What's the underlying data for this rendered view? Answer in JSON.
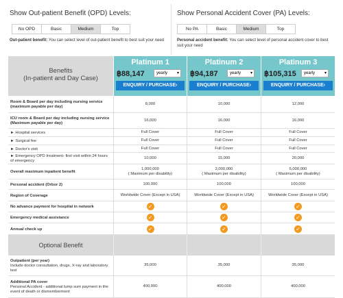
{
  "opd": {
    "title": "Show Out-patient Benefit (OPD) Levels:",
    "buttons": [
      "No OPD",
      "Basic",
      "Medium",
      "Top"
    ],
    "note_label": "Out-patient benefit:",
    "note_text": "You can select level of out-patient benefit to best suit your need"
  },
  "pa": {
    "title": "Show Personal Accident Cover (PA) Levels:",
    "buttons": [
      "No PA",
      "Basic",
      "Medium",
      "Top"
    ],
    "note_label": "Personal accident benefit:",
    "note_text": "You can select level of personal accident cover to best suit your need"
  },
  "table": {
    "header": {
      "line1": "Benefits",
      "line2": "(In-patient and Day Case)"
    },
    "plans": [
      {
        "name": "Platinum 1",
        "price": "฿88,147",
        "period": "yearly",
        "button": "ENQUIRY / PURCHASE›"
      },
      {
        "name": "Platinum 2",
        "price": "฿94,187",
        "period": "yearly",
        "button": "ENQUIRY / PURCHASE›"
      },
      {
        "name": "Platinum 3",
        "price": "฿105,315",
        "period": "yearly",
        "button": "ENQUIRY / PURCHASE›"
      }
    ],
    "rows": [
      {
        "label": "Room & Board per day including nursing service (maximum payable per day)",
        "cells": [
          "8,000",
          "10,000",
          "12,000"
        ]
      },
      {
        "label": "ICU room & Board per day including nursing service (Maximum payable per day)",
        "cells": [
          "16,000",
          "16,000",
          "16,000"
        ]
      },
      {
        "label": "► Hospital services",
        "cells": [
          "Full Cover",
          "Full Cover",
          "Full Cover"
        ]
      },
      {
        "label": "► Surgical fee",
        "cells": [
          "Full Cover",
          "Full Cover",
          "Full Cover"
        ]
      },
      {
        "label": "► Doctor's visit",
        "cells": [
          "Full Cover",
          "Full Cover",
          "Full Cover"
        ]
      },
      {
        "label": "► Emergency OPD treatment- first visit within 24 hours of emergency",
        "cells": [
          "10,000",
          "15,000",
          "20,000"
        ]
      },
      {
        "label": "Overall maximum inpatient benefit",
        "cells": [
          "1,000,000",
          "2,000,000",
          "5,000,000"
        ],
        "notes": [
          "( Maximum per disability)",
          "( Maximum per disability)",
          "( Maximum per disability)"
        ]
      },
      {
        "label": "Personal accident (Orbor 2)",
        "cells": [
          "100,000",
          "100,000",
          "100,000"
        ]
      },
      {
        "label": "Region of Coverage",
        "cells": [
          "Worldwide Cover (Except in USA)",
          "Worldwide Cover (Except in USA)",
          "Worldwide Cover (Except in USA)"
        ]
      },
      {
        "label": "No advance payment for hospital in network"
      },
      {
        "label": "Emergency medical assistance"
      },
      {
        "label": "Annual check up"
      }
    ],
    "optional_header": "Optional Benefit",
    "optional_rows": [
      {
        "label": "Outpatient (per year)",
        "description": "Include doctor consultation, drugs, X-ray and laboratory test",
        "cells": [
          "35,000",
          "35,000",
          "35,000"
        ]
      },
      {
        "label": "Additional PA cover",
        "description": "Personal Accident - additional lump sum payment in the event of death or dismemberment",
        "cells": [
          "400,000",
          "400,000",
          "400,000"
        ]
      }
    ]
  }
}
